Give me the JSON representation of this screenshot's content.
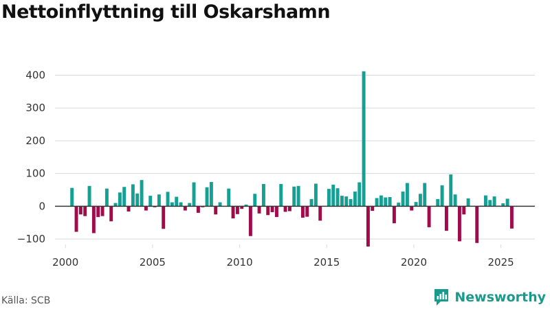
{
  "page": {
    "title": "Nettoinflyttning till Oskarshamn",
    "source": "Källa: SCB",
    "brand": "Newsworthy"
  },
  "colors": {
    "positive": "#16a094",
    "negative": "#a10b4c",
    "grid": "#d9d9d9",
    "zero_line": "#333333",
    "axis_text": "#333333",
    "brand": "#1a9a8d"
  },
  "chart_data": {
    "type": "bar",
    "title": "Nettoinflyttning till Oskarshamn",
    "xlabel": "",
    "ylabel": "",
    "x_unit": "quarter",
    "ylim": [
      -125,
      420
    ],
    "xlim": [
      1999.4,
      2026.95
    ],
    "yticks": [
      -100,
      0,
      100,
      200,
      300,
      400
    ],
    "ytick_labels": [
      "−100",
      "0",
      "100",
      "200",
      "300",
      "400"
    ],
    "xticks": [
      2000,
      2005,
      2010,
      2015,
      2020,
      2025
    ],
    "xtick_labels": [
      "2000",
      "2005",
      "2010",
      "2015",
      "2020",
      "2025"
    ],
    "grid": true,
    "legend": "none",
    "series": [
      {
        "name": "Nettoinflyttning",
        "x": [
          2000.375,
          2000.625,
          2000.875,
          2001.125,
          2001.375,
          2001.625,
          2001.875,
          2002.125,
          2002.375,
          2002.625,
          2002.875,
          2003.125,
          2003.375,
          2003.625,
          2003.875,
          2004.125,
          2004.375,
          2004.625,
          2004.875,
          2005.125,
          2005.375,
          2005.625,
          2005.875,
          2006.125,
          2006.375,
          2006.625,
          2006.875,
          2007.125,
          2007.375,
          2007.625,
          2007.875,
          2008.125,
          2008.375,
          2008.625,
          2008.875,
          2009.125,
          2009.375,
          2009.625,
          2009.875,
          2010.125,
          2010.375,
          2010.625,
          2010.875,
          2011.125,
          2011.375,
          2011.625,
          2011.875,
          2012.125,
          2012.375,
          2012.625,
          2012.875,
          2013.125,
          2013.375,
          2013.625,
          2013.875,
          2014.125,
          2014.375,
          2014.625,
          2014.875,
          2015.125,
          2015.375,
          2015.625,
          2015.875,
          2016.125,
          2016.375,
          2016.625,
          2016.875,
          2017.125,
          2017.375,
          2017.625,
          2017.875,
          2018.125,
          2018.375,
          2018.625,
          2018.875,
          2019.125,
          2019.375,
          2019.625,
          2019.875,
          2020.125,
          2020.375,
          2020.625,
          2020.875,
          2021.125,
          2021.375,
          2021.625,
          2021.875,
          2022.125,
          2022.375,
          2022.625,
          2022.875,
          2023.125,
          2023.375,
          2023.625,
          2023.875,
          2024.125,
          2024.375,
          2024.625,
          2024.875,
          2025.125,
          2025.375,
          2025.625
        ],
        "values": [
          56,
          -78,
          -25,
          -30,
          62,
          -82,
          -33,
          -30,
          54,
          -46,
          10,
          42,
          59,
          -16,
          67,
          39,
          80,
          -13,
          32,
          -3,
          36,
          -69,
          44,
          12,
          29,
          12,
          -13,
          10,
          73,
          -20,
          -3,
          58,
          74,
          -25,
          12,
          0,
          54,
          -37,
          -24,
          -8,
          5,
          -91,
          38,
          -22,
          68,
          -27,
          -18,
          -33,
          68,
          -17,
          -15,
          60,
          62,
          -35,
          -32,
          22,
          69,
          -44,
          0,
          53,
          66,
          55,
          32,
          30,
          22,
          45,
          73,
          412,
          -123,
          -14,
          25,
          33,
          27,
          28,
          -52,
          11,
          45,
          71,
          -13,
          13,
          38,
          71,
          -64,
          0,
          22,
          64,
          -75,
          97,
          36,
          -107,
          -25,
          24,
          0,
          -112,
          2,
          33,
          19,
          30,
          2,
          9,
          23,
          -68
        ]
      }
    ]
  }
}
